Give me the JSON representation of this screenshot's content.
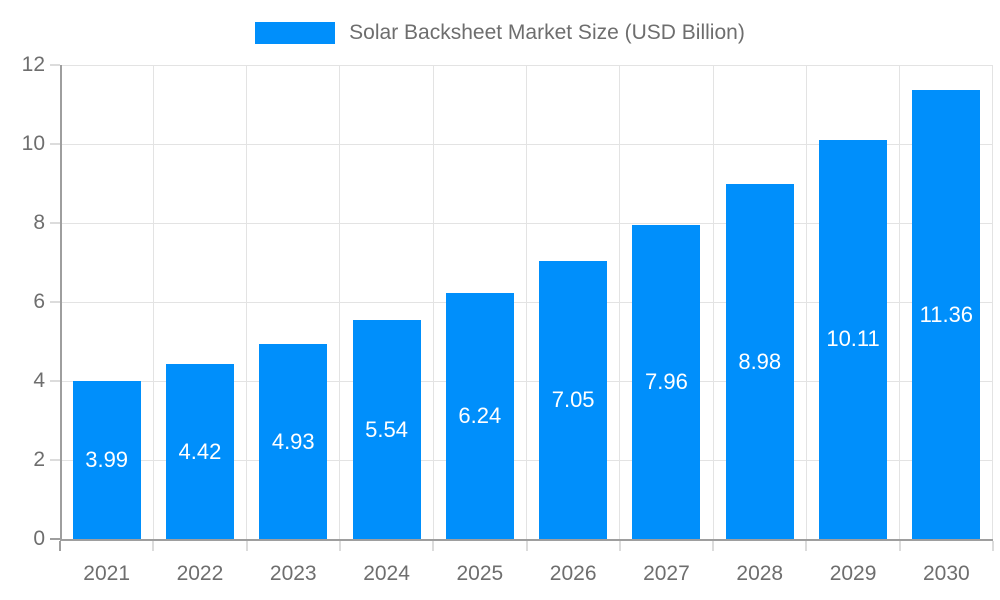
{
  "chart_data": {
    "type": "bar",
    "title": "Solar Backsheet Market Size (USD Billion)",
    "categories": [
      "2021",
      "2022",
      "2023",
      "2024",
      "2025",
      "2026",
      "2027",
      "2028",
      "2029",
      "2030"
    ],
    "values": [
      3.99,
      4.42,
      4.93,
      5.54,
      6.24,
      7.05,
      7.96,
      8.98,
      10.11,
      11.36
    ],
    "value_labels": [
      "3.99",
      "4.42",
      "4.93",
      "5.54",
      "6.24",
      "7.05",
      "7.96",
      "8.98",
      "10.11",
      "11.36"
    ],
    "xlabel": "",
    "ylabel": "",
    "ylim": [
      0,
      12
    ],
    "yticks": [
      0,
      2,
      4,
      6,
      8,
      10,
      12
    ],
    "ytick_labels": [
      "0",
      "2",
      "4",
      "6",
      "8",
      "10",
      "12"
    ],
    "grid": "on",
    "legend_position": "top-center",
    "colors": {
      "bar": "#008FFB",
      "bar_value_text": "#ffffff",
      "axis_line": "#9e9e9e",
      "gridline": "#e3e3e3",
      "tick_mark": "#dcdcdc",
      "tick_text": "#6e6e6e",
      "background": "#ffffff"
    }
  }
}
